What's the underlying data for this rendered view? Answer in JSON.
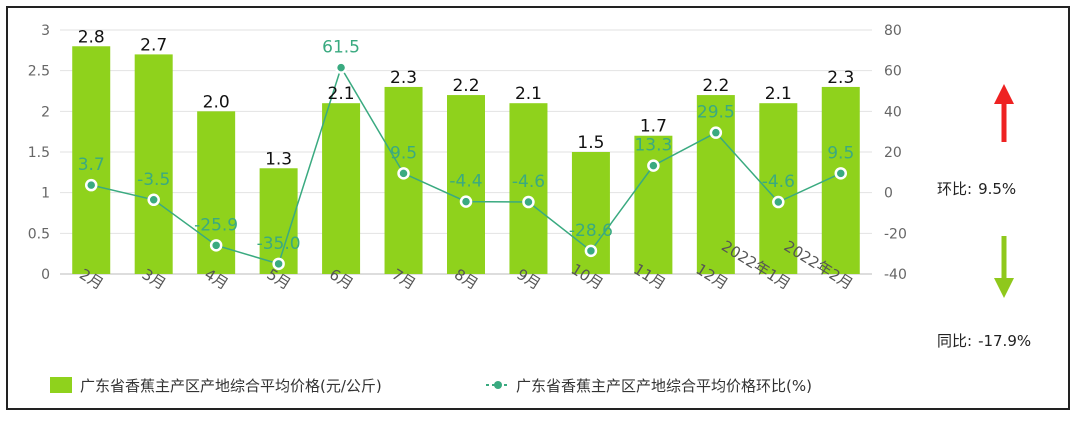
{
  "chart_data": {
    "type": "bar",
    "categories": [
      "2月",
      "3月",
      "4月",
      "5月",
      "6月",
      "7月",
      "8月",
      "9月",
      "10月",
      "11月",
      "12月",
      "2022年1月",
      "2022年2月"
    ],
    "series": [
      {
        "name": "广东省香蕉主产区产地综合平均价格(元/公斤)",
        "type": "bar",
        "axis": "left",
        "color": "#8fd21c",
        "values": [
          2.8,
          2.7,
          2.0,
          1.3,
          2.1,
          2.3,
          2.2,
          2.1,
          1.5,
          1.7,
          2.2,
          2.1,
          2.3
        ]
      },
      {
        "name": "广东省香蕉主产区产地综合平均价格环比(%)",
        "type": "line",
        "axis": "right",
        "color": "#3aaa80",
        "values": [
          3.7,
          -3.5,
          -25.9,
          -35.0,
          61.5,
          9.5,
          -4.4,
          -4.6,
          -28.6,
          13.3,
          29.5,
          -4.6,
          9.5
        ]
      }
    ],
    "bar_labels": [
      "2.8",
      "2.7",
      "2.0",
      "1.3",
      "2.1",
      "2.3",
      "2.2",
      "2.1",
      "1.5",
      "1.7",
      "2.2",
      "2.1",
      "2.3"
    ],
    "line_labels": [
      "3.7",
      "-3.5",
      "-25.9",
      "-35.0",
      "61.5",
      "9.5",
      "-4.4",
      "-4.6",
      "-28.6",
      "13.3",
      "29.5",
      "-4.6",
      "9.5"
    ],
    "y_left": {
      "ylim": [
        0,
        3
      ],
      "ticks": [
        "0",
        "0.5",
        "1",
        "1.5",
        "2",
        "2.5",
        "3"
      ]
    },
    "y_right": {
      "ylim": [
        -40,
        80
      ],
      "ticks": [
        "-40",
        "-20",
        "0",
        "20",
        "40",
        "60",
        "80"
      ]
    },
    "grid": true,
    "legend_position": "bottom-left"
  },
  "side": {
    "mom_label": "环比:",
    "mom_value": "9.5%",
    "yoy_label": "同比:",
    "yoy_value": "-17.9%",
    "up_color": "#ee2222",
    "down_color": "#8fc81c"
  }
}
